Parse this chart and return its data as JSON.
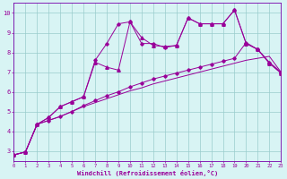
{
  "xlabel": "Windchill (Refroidissement éolien,°C)",
  "bg_color": "#cceeff",
  "plot_bg": "#d8f4f4",
  "line_color": "#990099",
  "grid_color": "#99cccc",
  "spine_color": "#7700aa",
  "xmin": 0,
  "xmax": 23,
  "ymin": 2.5,
  "ymax": 10.5,
  "xticks": [
    0,
    1,
    2,
    3,
    4,
    5,
    6,
    7,
    8,
    9,
    10,
    11,
    12,
    13,
    14,
    15,
    16,
    17,
    18,
    19,
    20,
    21,
    22,
    23
  ],
  "yticks": [
    3,
    4,
    5,
    6,
    7,
    8,
    9,
    10
  ],
  "line1_x": [
    0,
    1,
    2,
    3,
    4,
    5,
    6,
    7,
    8,
    9,
    10,
    11,
    12,
    13,
    14,
    15,
    16,
    17,
    18,
    19,
    20,
    21,
    22,
    23
  ],
  "line1_y": [
    2.8,
    2.95,
    4.35,
    4.55,
    4.75,
    5.0,
    5.25,
    5.45,
    5.65,
    5.85,
    6.05,
    6.2,
    6.4,
    6.55,
    6.7,
    6.85,
    7.0,
    7.15,
    7.3,
    7.45,
    7.6,
    7.7,
    7.8,
    7.0
  ],
  "line2_x": [
    0,
    1,
    2,
    3,
    4,
    5,
    6,
    7,
    8,
    9,
    10,
    11,
    12,
    13,
    14,
    15,
    16,
    17,
    18,
    19,
    20,
    21,
    22,
    23
  ],
  "line2_y": [
    2.8,
    2.95,
    4.35,
    4.55,
    4.75,
    5.0,
    5.3,
    5.55,
    5.8,
    6.0,
    6.25,
    6.45,
    6.65,
    6.8,
    6.95,
    7.1,
    7.25,
    7.4,
    7.55,
    7.7,
    8.5,
    8.15,
    7.5,
    7.0
  ],
  "line3_x": [
    0,
    1,
    2,
    3,
    4,
    5,
    6,
    7,
    8,
    9,
    10,
    11,
    12,
    13,
    14,
    15,
    16,
    17,
    18,
    19,
    20,
    21,
    22,
    23
  ],
  "line3_y": [
    2.8,
    2.95,
    4.35,
    4.7,
    5.25,
    5.5,
    5.75,
    7.5,
    7.25,
    7.1,
    9.55,
    8.75,
    8.35,
    8.3,
    8.35,
    9.75,
    9.45,
    9.45,
    9.45,
    10.15,
    8.45,
    8.15,
    7.45,
    6.95
  ],
  "line4_x": [
    0,
    1,
    2,
    3,
    4,
    5,
    6,
    7,
    8,
    9,
    10,
    11,
    12,
    13,
    14,
    15,
    16,
    17,
    18,
    19,
    20,
    21,
    22,
    23
  ],
  "line4_y": [
    2.8,
    2.95,
    4.35,
    4.7,
    5.25,
    5.5,
    5.75,
    7.6,
    8.45,
    9.45,
    9.55,
    8.45,
    8.45,
    8.25,
    8.35,
    9.75,
    9.45,
    9.45,
    9.45,
    10.15,
    8.45,
    8.15,
    7.45,
    6.95
  ]
}
